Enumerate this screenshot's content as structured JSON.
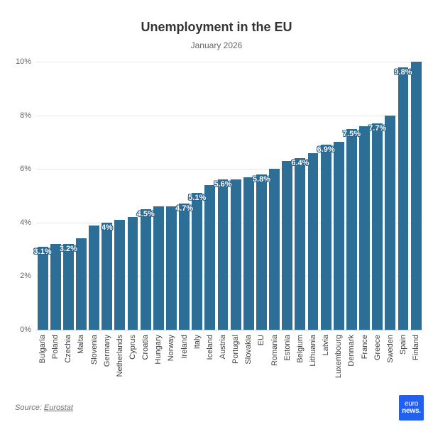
{
  "source": {
    "prefix": "Source:",
    "link_text": "Eurostat"
  },
  "logo": {
    "line1": "euro",
    "line2": "news."
  },
  "colors": {
    "bar": "#2d6e96",
    "data_label_text": "#ffffff",
    "data_label_outline": "#29638b",
    "title": "#333333",
    "subtitle": "#666666",
    "axis_text": "#666666",
    "x_axis_text": "#404040",
    "gridline": "#e6e6e6",
    "baseline": "#c9c9c9",
    "logo_bg": "#2160f0",
    "logo_text": "#ffffff"
  },
  "chart_data": {
    "type": "bar",
    "title": "Unemployment in the EU",
    "subtitle": "January 2026",
    "xlabel": "",
    "ylabel": "",
    "ylim": [
      0,
      10
    ],
    "yticks": [
      "0%",
      "2%",
      "4%",
      "6%",
      "8%",
      "10%"
    ],
    "grid": true,
    "legend": "none",
    "bar_color": "#2d6e96",
    "categories": [
      "Bulgaria",
      "Poland",
      "Czechia",
      "Malta",
      "Slovenia",
      "Germany",
      "Netherlands",
      "Cyprus",
      "Croatia",
      "Hungary",
      "Norway",
      "Ireland",
      "Italy",
      "Iceland",
      "Austria",
      "Portugal",
      "Slovakia",
      "EU",
      "Romania",
      "Estonia",
      "Belgium",
      "Lithuania",
      "Latvia",
      "Luxembourg",
      "Denmark",
      "France",
      "Greece",
      "Sweden",
      "Spain",
      "Finland"
    ],
    "values": [
      3.1,
      3.2,
      3.2,
      3.4,
      3.9,
      4.0,
      4.1,
      4.2,
      4.5,
      4.6,
      4.6,
      4.7,
      5.1,
      5.4,
      5.6,
      5.6,
      5.7,
      5.8,
      6.0,
      6.3,
      6.4,
      6.6,
      6.9,
      7.0,
      7.5,
      7.6,
      7.7,
      8.0,
      9.8,
      10.0
    ],
    "shown_labels": {
      "0": "3.1%",
      "2": "3.2%",
      "5": "4%",
      "8": "4.5%",
      "11": "4.7%",
      "12": "5.1%",
      "14": "5.6%",
      "17": "5.8%",
      "20": "6.4%",
      "22": "6.9%",
      "24": "7.5%",
      "26": "7.7%",
      "28": "9.8%"
    }
  }
}
